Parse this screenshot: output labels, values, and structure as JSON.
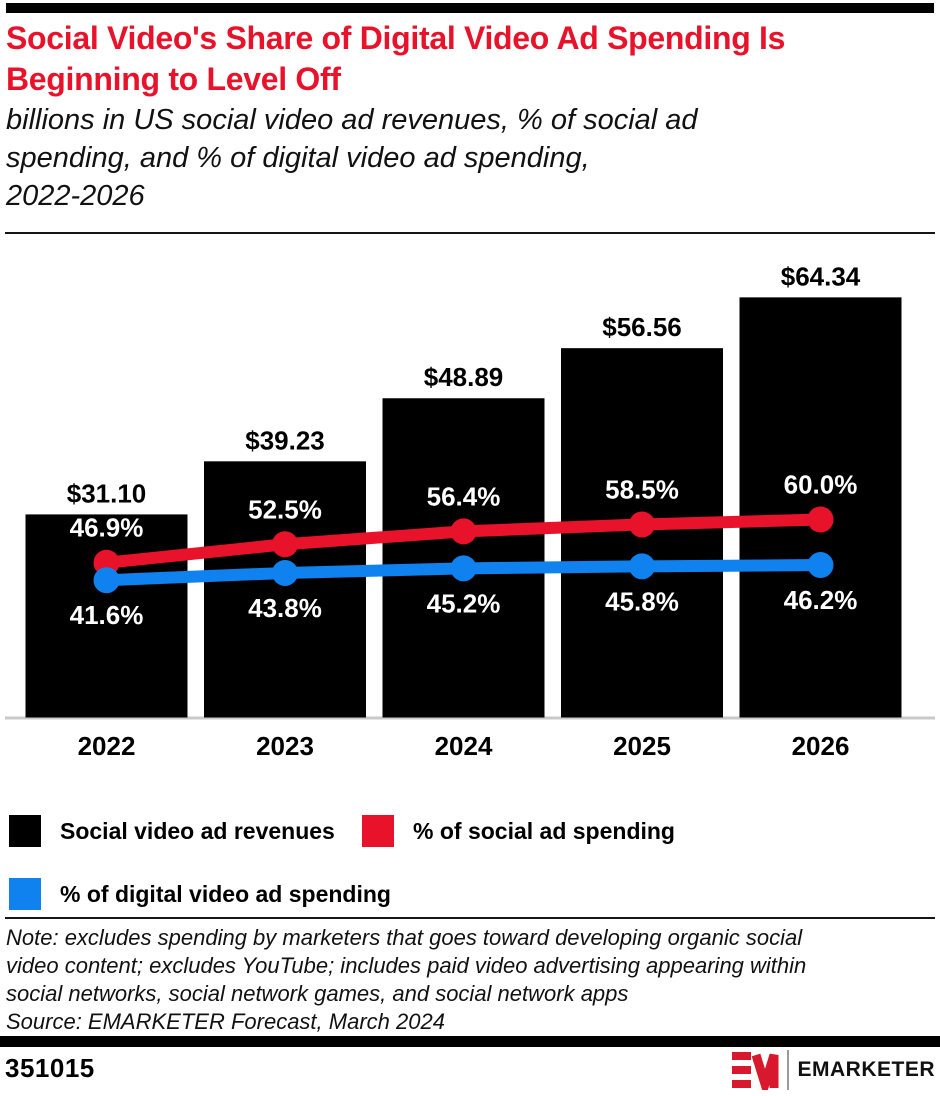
{
  "header": {
    "title": "Social Video's Share of Digital Video Ad Spending Is\nBeginning to Level Off",
    "subtitle": "billions in US social video ad revenues, % of social ad\nspending, and % of digital video ad spending,\n2022-2026"
  },
  "colors": {
    "red": "#e8132b",
    "blue": "#0f82f0",
    "bar": "#000000",
    "axis_line": "#c9c9c9",
    "bar_label_text": "#000000",
    "line_label_text": "#ffffff"
  },
  "chart_data": {
    "type": "bar+line combo",
    "categories": [
      "2022",
      "2023",
      "2024",
      "2025",
      "2026"
    ],
    "bar_series": {
      "name": "Social video ad revenues",
      "unit": "billions of US dollars",
      "color": "#000000",
      "values": [
        31.1,
        39.23,
        48.89,
        56.56,
        64.34
      ],
      "labels": [
        "$31.10",
        "$39.23",
        "$48.89",
        "$56.56",
        "$64.34"
      ]
    },
    "line_series": [
      {
        "name": "% of social ad spending",
        "color": "#e8132b",
        "values": [
          46.9,
          52.5,
          56.4,
          58.5,
          60.0
        ],
        "labels": [
          "46.9%",
          "52.5%",
          "56.4%",
          "58.5%",
          "60.0%"
        ],
        "label_position": "above"
      },
      {
        "name": "% of digital video ad spending",
        "color": "#0f82f0",
        "values": [
          41.6,
          43.8,
          45.2,
          45.8,
          46.2
        ],
        "labels": [
          "41.6%",
          "43.8%",
          "45.2%",
          "45.8%",
          "46.2%"
        ],
        "label_position": "below"
      }
    ],
    "axes": "no visible value axes; data labels only; gray baseline under bars",
    "legend_position": "below chart, two rows"
  },
  "legend": {
    "items": [
      {
        "label": "Social video ad revenues",
        "color": "#000000"
      },
      {
        "label": "% of social ad spending",
        "color": "#e8132b"
      },
      {
        "label": "% of digital video ad spending",
        "color": "#0f82f0"
      }
    ]
  },
  "note": {
    "text": "Note: excludes spending by marketers that goes toward developing organic social\nvideo content; excludes YouTube; includes paid video advertising appearing within\nsocial networks, social network games, and social network apps",
    "source": "Source: EMARKETER Forecast, March 2024"
  },
  "footer": {
    "chart_id": "351015",
    "brand": "EMARKETER"
  }
}
